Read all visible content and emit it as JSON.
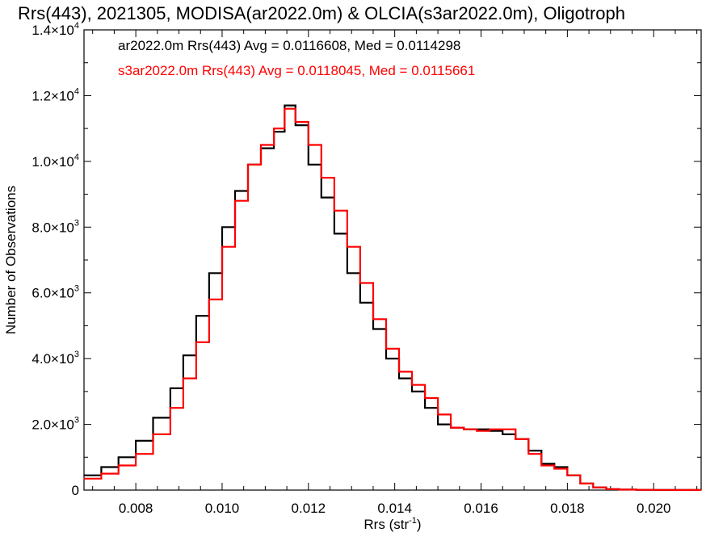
{
  "chart_data": {
    "type": "line",
    "title": "Rrs(443), 2021305, MODISA(ar2022.0m) & OLCIA(s3ar2022.0m), Oligotroph",
    "xlabel": "Rrs (str",
    "xlabel_sup": "-1",
    "xlabel_close": ")",
    "ylabel": "Number of Observations",
    "xlim": [
      0.0068,
      0.0211
    ],
    "ylim": [
      0,
      14000
    ],
    "x_ticks": [
      {
        "value": 0.008,
        "label": "0.008"
      },
      {
        "value": 0.01,
        "label": "0.010"
      },
      {
        "value": 0.012,
        "label": "0.012"
      },
      {
        "value": 0.014,
        "label": "0.014"
      },
      {
        "value": 0.016,
        "label": "0.016"
      },
      {
        "value": 0.018,
        "label": "0.018"
      },
      {
        "value": 0.02,
        "label": "0.020"
      }
    ],
    "y_ticks": [
      {
        "value": 0,
        "mant": "0",
        "exp": ""
      },
      {
        "value": 2000,
        "mant": "2.0×10",
        "exp": "3"
      },
      {
        "value": 4000,
        "mant": "4.0×10",
        "exp": "3"
      },
      {
        "value": 6000,
        "mant": "6.0×10",
        "exp": "3"
      },
      {
        "value": 8000,
        "mant": "8.0×10",
        "exp": "3"
      },
      {
        "value": 10000,
        "mant": "1.0×10",
        "exp": "4"
      },
      {
        "value": 12000,
        "mant": "1.2×10",
        "exp": "4"
      },
      {
        "value": 14000,
        "mant": "1.4×10",
        "exp": "4"
      }
    ],
    "series": [
      {
        "name": "ar2022.0m Rrs(443) Avg = 0.0116608, Med = 0.0114298",
        "color": "#000000",
        "x": [
          0.0068,
          0.0072,
          0.0076,
          0.008,
          0.0084,
          0.0088,
          0.0091,
          0.0094,
          0.0097,
          0.01,
          0.0103,
          0.0106,
          0.0109,
          0.0112,
          0.01145,
          0.0117,
          0.012,
          0.0123,
          0.0126,
          0.0129,
          0.0132,
          0.0135,
          0.0138,
          0.0141,
          0.0144,
          0.0147,
          0.015,
          0.0153,
          0.0156,
          0.0159,
          0.0162,
          0.0165,
          0.0168,
          0.0171,
          0.0174,
          0.0177,
          0.018,
          0.0183,
          0.0186,
          0.0189,
          0.0192,
          0.0196,
          0.02,
          0.0205,
          0.0211
        ],
        "y": [
          450,
          700,
          1000,
          1500,
          2200,
          3100,
          4100,
          5300,
          6600,
          8000,
          9100,
          9900,
          10400,
          10900,
          11700,
          11100,
          9900,
          8900,
          7800,
          6600,
          5700,
          4900,
          4000,
          3400,
          3000,
          2500,
          2000,
          1900,
          1850,
          1850,
          1800,
          1700,
          1550,
          1200,
          800,
          700,
          450,
          200,
          80,
          30,
          15,
          8,
          5,
          3,
          2
        ]
      },
      {
        "name": "s3ar2022.0m Rrs(443) Avg = 0.0118045, Med = 0.0115661",
        "color": "#ff0000",
        "x": [
          0.0068,
          0.0072,
          0.0076,
          0.008,
          0.0084,
          0.0088,
          0.0091,
          0.0094,
          0.0097,
          0.01,
          0.0103,
          0.0106,
          0.0109,
          0.0112,
          0.01145,
          0.0117,
          0.012,
          0.0123,
          0.0126,
          0.0129,
          0.0132,
          0.0135,
          0.0138,
          0.0141,
          0.0144,
          0.0147,
          0.015,
          0.0153,
          0.0156,
          0.0159,
          0.0162,
          0.0165,
          0.0168,
          0.0171,
          0.0174,
          0.0177,
          0.018,
          0.0183,
          0.0186,
          0.0189,
          0.0192,
          0.0196,
          0.02,
          0.0205,
          0.0211
        ],
        "y": [
          350,
          500,
          750,
          1100,
          1700,
          2500,
          3400,
          4500,
          5800,
          7400,
          8800,
          9900,
          10500,
          11000,
          11600,
          11200,
          10500,
          9500,
          8500,
          7400,
          6300,
          5200,
          4300,
          3600,
          3200,
          2800,
          2300,
          1900,
          1850,
          1800,
          1850,
          1850,
          1550,
          1100,
          750,
          650,
          450,
          200,
          80,
          30,
          15,
          8,
          5,
          3,
          2
        ]
      }
    ]
  }
}
